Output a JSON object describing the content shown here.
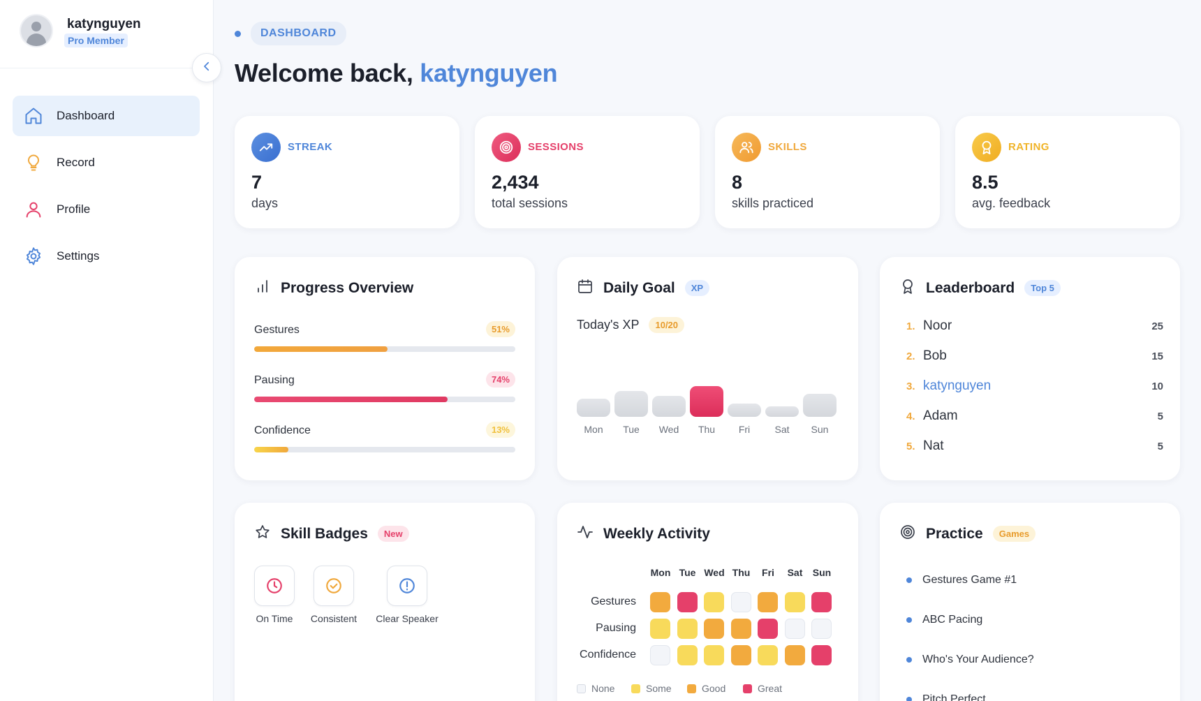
{
  "user": {
    "name": "katynguyen",
    "membership": "Pro Member"
  },
  "nav": {
    "items": [
      {
        "label": "Dashboard",
        "icon": "home-icon",
        "active": true
      },
      {
        "label": "Record",
        "icon": "lightbulb-icon"
      },
      {
        "label": "Profile",
        "icon": "user-icon"
      },
      {
        "label": "Settings",
        "icon": "gear-icon"
      }
    ]
  },
  "breadcrumb": "DASHBOARD",
  "welcome": {
    "prefix": "Welcome back, ",
    "name": "katynguyen"
  },
  "stats": [
    {
      "label": "STREAK",
      "value": "7",
      "unit": "days",
      "color": "#4f86d9",
      "icon": "trending-up-icon"
    },
    {
      "label": "SESSIONS",
      "value": "2,434",
      "unit": "total sessions",
      "color": "#e5406a",
      "icon": "target-icon"
    },
    {
      "label": "SKILLS",
      "value": "8",
      "unit": "skills practiced",
      "color": "#f0a83c",
      "icon": "users-icon"
    },
    {
      "label": "RATING",
      "value": "8.5",
      "unit": "avg. feedback",
      "color": "#f0b429",
      "icon": "award-icon"
    }
  ],
  "progress": {
    "title": "Progress Overview",
    "items": [
      {
        "label": "Gestures",
        "percent_label": "51%",
        "value": 51,
        "color": "#f0a83c"
      },
      {
        "label": "Pausing",
        "percent_label": "74%",
        "value": 74,
        "color": "#e5406a"
      },
      {
        "label": "Confidence",
        "percent_label": "13%",
        "value": 13,
        "color": "#f7d047"
      }
    ]
  },
  "daily_goal": {
    "title": "Daily Goal",
    "tag": "XP",
    "xp_label": "Today's XP",
    "xp_value": "10/20"
  },
  "chart_data": {
    "type": "bar",
    "categories": [
      "Mon",
      "Tue",
      "Wed",
      "Thu",
      "Fri",
      "Sat",
      "Sun"
    ],
    "values": [
      5,
      8,
      6,
      10,
      3,
      2,
      7
    ],
    "highlight": "Thu",
    "ylim": [
      0,
      10
    ],
    "title": "",
    "xlabel": "",
    "ylabel": ""
  },
  "leaderboard": {
    "title": "Leaderboard",
    "tag": "Top 5",
    "entries": [
      {
        "rank": "1.",
        "name": "Noor",
        "score": "25"
      },
      {
        "rank": "2.",
        "name": "Bob",
        "score": "15"
      },
      {
        "rank": "3.",
        "name": "katynguyen",
        "score": "10",
        "current_user": true
      },
      {
        "rank": "4.",
        "name": "Adam",
        "score": "5"
      },
      {
        "rank": "5.",
        "name": "Nat",
        "score": "5"
      }
    ]
  },
  "skill_badges": {
    "title": "Skill Badges",
    "tag": "New",
    "badges": [
      {
        "label": "On Time",
        "icon": "clock-icon",
        "color": "#e5406a"
      },
      {
        "label": "Consistent",
        "icon": "check-circle-icon",
        "color": "#f0a83c"
      },
      {
        "label": "Clear Speaker",
        "icon": "info-icon",
        "color": "#4f86d9"
      }
    ]
  },
  "weekly_activity": {
    "title": "Weekly Activity",
    "days": [
      "Mon",
      "Tue",
      "Wed",
      "Thu",
      "Fri",
      "Sat",
      "Sun"
    ],
    "rows": [
      {
        "label": "Gestures",
        "levels": [
          "Good",
          "Great",
          "Some",
          "None",
          "Good",
          "Some",
          "Great"
        ]
      },
      {
        "label": "Pausing",
        "levels": [
          "Some",
          "Some",
          "Good",
          "Good",
          "Great",
          "None",
          "None"
        ]
      },
      {
        "label": "Confidence",
        "levels": [
          "None",
          "Some",
          "Some",
          "Good",
          "Some",
          "Good",
          "Great"
        ]
      }
    ],
    "legend": [
      {
        "label": "None",
        "color": "#f3f5f9"
      },
      {
        "label": "Some",
        "color": "#f8da5b"
      },
      {
        "label": "Good",
        "color": "#f2aa3e"
      },
      {
        "label": "Great",
        "color": "#e5406a"
      }
    ]
  },
  "practice": {
    "title": "Practice",
    "tag": "Games",
    "items": [
      "Gestures Game #1",
      "ABC Pacing",
      "Who's Your Audience?",
      "Pitch Perfect"
    ]
  }
}
